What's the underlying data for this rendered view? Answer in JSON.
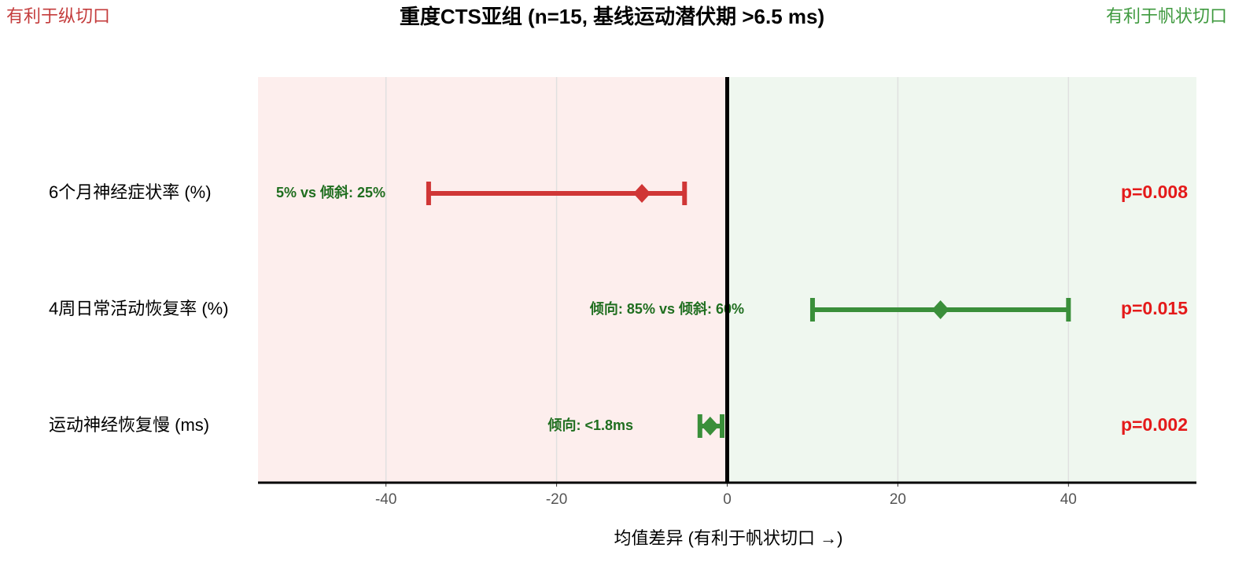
{
  "chart_data": {
    "type": "forest",
    "title": "重度CTS亚组 (n=15, 基线运动潜伏期 >6.5 ms)",
    "left_label": "有利于纵切口",
    "left_color": "#c43c3c",
    "right_label": "有利于帆状切口",
    "right_color": "#3f9a3f",
    "xlabel": "均值差异 (有利于帆状切口 →)",
    "categories": [
      "6个月神经症状率 (%)",
      "4周日常活动恢复率 (%)",
      "运动神经恢复慢 (ms)"
    ],
    "values": [
      -10,
      25,
      -2
    ],
    "ci_low": [
      -35,
      10,
      -3.2
    ],
    "ci_high": [
      -5,
      40,
      -0.6
    ],
    "colors": [
      "#d03636",
      "#3a8f3a",
      "#3a8f3a"
    ],
    "annotations": [
      "5% vs 倾斜: 25%",
      "倾向: 85% vs 倾斜: 60%",
      "倾向: <1.8ms"
    ],
    "annotation_color": "#1f6e1f",
    "p_values": [
      "p=0.008",
      "p=0.015",
      "p=0.002"
    ],
    "p_color": "#e41a1a",
    "xlim": [
      -55,
      55
    ],
    "xticks": [
      -40,
      -20,
      0,
      20,
      40
    ],
    "grid": true
  }
}
